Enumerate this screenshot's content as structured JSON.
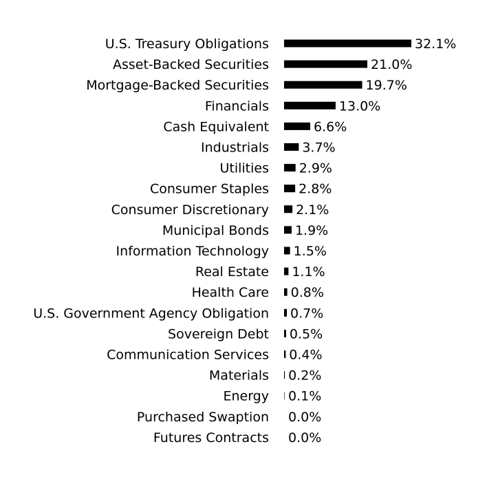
{
  "chart_data": {
    "type": "bar",
    "orientation": "horizontal",
    "title": "",
    "xlabel": "",
    "ylabel": "",
    "xlim": [
      0,
      32.1
    ],
    "grid": false,
    "legend": "none",
    "bar_color": "#000000",
    "value_suffix": "%",
    "categories": [
      "U.S. Treasury Obligations",
      "Asset-Backed Securities",
      "Mortgage-Backed Securities",
      "Financials",
      "Cash Equivalent",
      "Industrials",
      "Utilities",
      "Consumer Staples",
      "Consumer Discretionary",
      "Municipal Bonds",
      "Information Technology",
      "Real Estate",
      "Health Care",
      "U.S. Government Agency Obligation",
      "Sovereign Debt",
      "Communication Services",
      "Materials",
      "Energy",
      "Purchased Swaption",
      "Futures Contracts"
    ],
    "values": [
      32.1,
      21.0,
      19.7,
      13.0,
      6.6,
      3.7,
      2.9,
      2.8,
      2.1,
      1.9,
      1.5,
      1.1,
      0.8,
      0.7,
      0.5,
      0.4,
      0.2,
      0.1,
      0.0,
      0.0
    ],
    "value_labels": [
      "32.1%",
      "21.0%",
      "19.7%",
      "13.0%",
      "6.6%",
      "3.7%",
      "2.9%",
      "2.8%",
      "2.1%",
      "1.9%",
      "1.5%",
      "1.1%",
      "0.8%",
      "0.7%",
      "0.5%",
      "0.4%",
      "0.2%",
      "0.1%",
      "0.0%",
      "0.0%"
    ]
  }
}
